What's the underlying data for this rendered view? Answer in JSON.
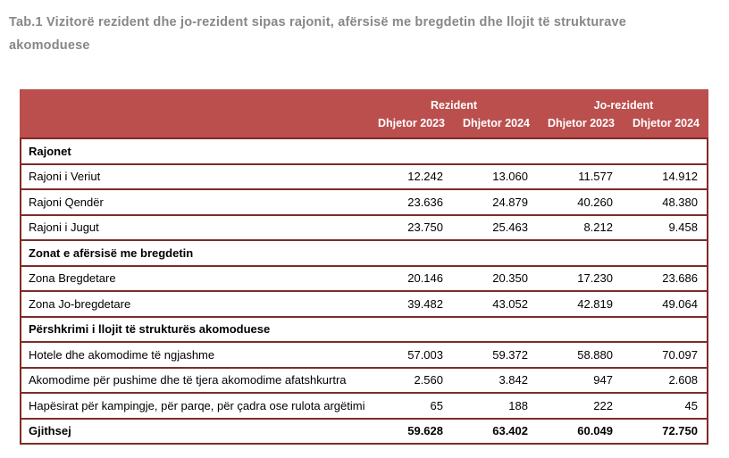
{
  "title": "Tab.1 Vizitorë rezident dhe jo-rezident sipas rajonit, afërsisë me bregdetin dhe llojit të strukturave akomoduese",
  "colors": {
    "header_bg": "#bb4f4e",
    "header_text": "#ffffff",
    "row_border": "#7f2b28",
    "title_text": "#878787",
    "body_text": "#000000"
  },
  "table": {
    "column_groups": [
      {
        "label": "Rezident",
        "span": 2
      },
      {
        "label": "Jo-rezident",
        "span": 2
      }
    ],
    "column_headers": [
      "Dhjetor 2023",
      "Dhjetor 2024",
      "Dhjetor 2023",
      "Dhjetor 2024"
    ],
    "rows": [
      {
        "type": "section",
        "label": "Rajonet",
        "values": [
          "",
          "",
          "",
          ""
        ]
      },
      {
        "type": "data",
        "label": "Rajoni i Veriut",
        "values": [
          "12.242",
          "13.060",
          "11.577",
          "14.912"
        ]
      },
      {
        "type": "data",
        "label": "Rajoni Qendër",
        "values": [
          "23.636",
          "24.879",
          "40.260",
          "48.380"
        ]
      },
      {
        "type": "data",
        "label": "Rajoni i Jugut",
        "values": [
          "23.750",
          "25.463",
          "8.212",
          "9.458"
        ]
      },
      {
        "type": "section",
        "label": "Zonat e afërsisë me bregdetin",
        "values": [
          "",
          "",
          "",
          ""
        ]
      },
      {
        "type": "data",
        "label": "Zona Bregdetare",
        "values": [
          "20.146",
          "20.350",
          "17.230",
          "23.686"
        ]
      },
      {
        "type": "data",
        "label": "Zona Jo-bregdetare",
        "values": [
          "39.482",
          "43.052",
          "42.819",
          "49.064"
        ]
      },
      {
        "type": "section",
        "label": "Përshkrimi i llojit të strukturës akomoduese",
        "values": [
          "",
          "",
          "",
          ""
        ]
      },
      {
        "type": "data",
        "label": "Hotele dhe akomodime të ngjashme",
        "values": [
          "57.003",
          "59.372",
          "58.880",
          "70.097"
        ]
      },
      {
        "type": "data",
        "label": "Akomodime për pushime dhe të tjera akomodime afatshkurtra",
        "values": [
          "2.560",
          "3.842",
          "947",
          "2.608"
        ]
      },
      {
        "type": "data",
        "label": "Hapësirat për kampingje, për parqe, për çadra ose rulota argëtimi",
        "values": [
          "65",
          "188",
          "222",
          "45"
        ]
      },
      {
        "type": "total",
        "label": "Gjithsej",
        "values": [
          "59.628",
          "63.402",
          "60.049",
          "72.750"
        ]
      }
    ]
  }
}
